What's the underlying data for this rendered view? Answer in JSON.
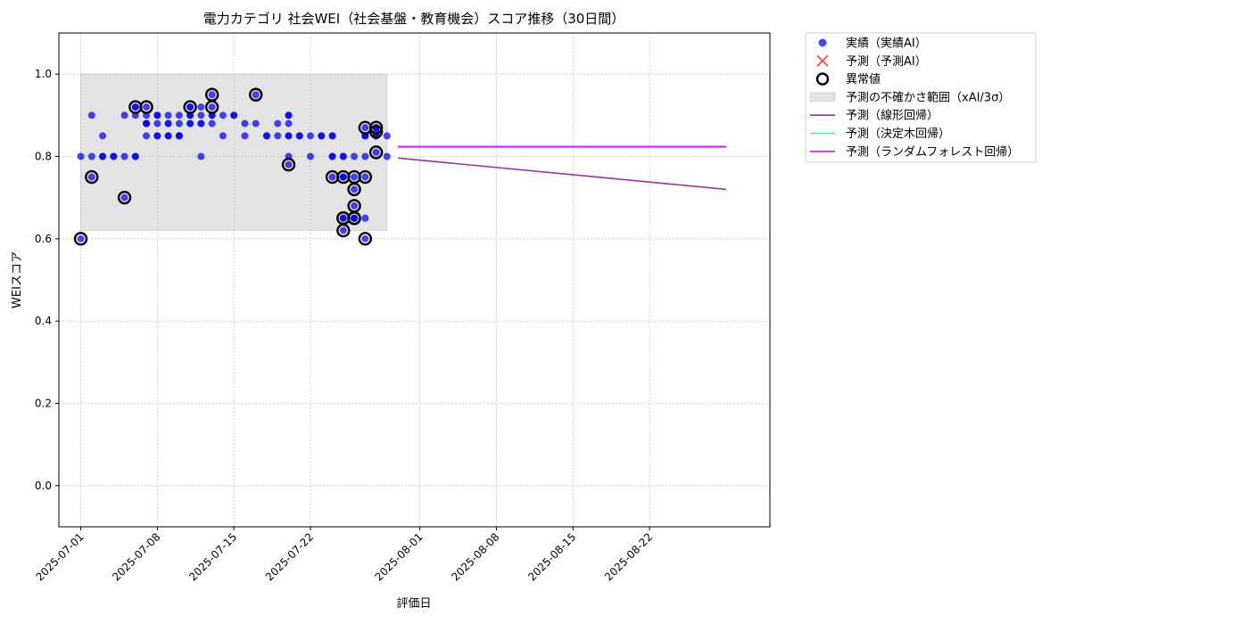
{
  "chart_data": {
    "type": "scatter",
    "title": "電力カテゴリ 社会WEI（社会基盤・教育機会）スコア推移（30日間）",
    "xlabel": "評価日",
    "ylabel": "WEIスコア",
    "xlim": [
      "2025-06-29",
      "2025-09-02"
    ],
    "ylim": [
      -0.1,
      1.1
    ],
    "yticks": [
      0.0,
      0.2,
      0.4,
      0.6,
      0.8,
      1.0
    ],
    "ytick_labels": [
      "0.0",
      "0.2",
      "0.4",
      "0.6",
      "0.8",
      "1.0"
    ],
    "xticks": [
      "2025-07-01",
      "2025-07-08",
      "2025-07-15",
      "2025-07-22",
      "2025-08-01",
      "2025-08-08",
      "2025-08-15",
      "2025-08-22"
    ],
    "grid": true,
    "legend_position": "outside-top-right",
    "uncertainty_band": {
      "name": "予測の不確かさ範囲（xAI/3σ）",
      "x": [
        "2025-07-01",
        "2025-07-29"
      ],
      "y": [
        0.62,
        1.0
      ],
      "color": "#b0b0b0"
    },
    "series": [
      {
        "name": "実績（実績AI）",
        "type": "scatter",
        "color": "#0000ee",
        "points": [
          [
            "2025-07-01",
            0.8
          ],
          [
            "2025-07-01",
            0.6
          ],
          [
            "2025-07-02",
            0.9
          ],
          [
            "2025-07-02",
            0.75
          ],
          [
            "2025-07-02",
            0.8
          ],
          [
            "2025-07-03",
            0.8
          ],
          [
            "2025-07-03",
            0.85
          ],
          [
            "2025-07-03",
            0.8
          ],
          [
            "2025-07-04",
            0.8
          ],
          [
            "2025-07-04",
            0.8
          ],
          [
            "2025-07-05",
            0.7
          ],
          [
            "2025-07-05",
            0.9
          ],
          [
            "2025-07-05",
            0.8
          ],
          [
            "2025-07-06",
            0.9
          ],
          [
            "2025-07-06",
            0.92
          ],
          [
            "2025-07-06",
            0.8
          ],
          [
            "2025-07-06",
            0.8
          ],
          [
            "2025-07-06",
            0.92
          ],
          [
            "2025-07-07",
            0.88
          ],
          [
            "2025-07-07",
            0.85
          ],
          [
            "2025-07-07",
            0.9
          ],
          [
            "2025-07-07",
            0.88
          ],
          [
            "2025-07-07",
            0.92
          ],
          [
            "2025-07-07",
            0.88
          ],
          [
            "2025-07-08",
            0.85
          ],
          [
            "2025-07-08",
            0.88
          ],
          [
            "2025-07-08",
            0.9
          ],
          [
            "2025-07-08",
            0.85
          ],
          [
            "2025-07-08",
            0.9
          ],
          [
            "2025-07-09",
            0.9
          ],
          [
            "2025-07-09",
            0.88
          ],
          [
            "2025-07-09",
            0.85
          ],
          [
            "2025-07-09",
            0.85
          ],
          [
            "2025-07-09",
            0.88
          ],
          [
            "2025-07-10",
            0.85
          ],
          [
            "2025-07-10",
            0.9
          ],
          [
            "2025-07-10",
            0.85
          ],
          [
            "2025-07-10",
            0.85
          ],
          [
            "2025-07-10",
            0.88
          ],
          [
            "2025-07-11",
            0.88
          ],
          [
            "2025-07-11",
            0.9
          ],
          [
            "2025-07-11",
            0.9
          ],
          [
            "2025-07-11",
            0.88
          ],
          [
            "2025-07-11",
            0.92
          ],
          [
            "2025-07-11",
            0.92
          ],
          [
            "2025-07-12",
            0.88
          ],
          [
            "2025-07-12",
            0.8
          ],
          [
            "2025-07-12",
            0.9
          ],
          [
            "2025-07-12",
            0.88
          ],
          [
            "2025-07-12",
            0.92
          ],
          [
            "2025-07-13",
            0.9
          ],
          [
            "2025-07-13",
            0.95
          ],
          [
            "2025-07-13",
            0.92
          ],
          [
            "2025-07-13",
            0.88
          ],
          [
            "2025-07-13",
            0.9
          ],
          [
            "2025-07-14",
            0.9
          ],
          [
            "2025-07-14",
            0.85
          ],
          [
            "2025-07-15",
            0.9
          ],
          [
            "2025-07-15",
            0.9
          ],
          [
            "2025-07-16",
            0.88
          ],
          [
            "2025-07-16",
            0.85
          ],
          [
            "2025-07-17",
            0.95
          ],
          [
            "2025-07-17",
            0.88
          ],
          [
            "2025-07-18",
            0.85
          ],
          [
            "2025-07-18",
            0.85
          ],
          [
            "2025-07-19",
            0.88
          ],
          [
            "2025-07-19",
            0.85
          ],
          [
            "2025-07-20",
            0.9
          ],
          [
            "2025-07-20",
            0.9
          ],
          [
            "2025-07-20",
            0.88
          ],
          [
            "2025-07-20",
            0.78
          ],
          [
            "2025-07-20",
            0.85
          ],
          [
            "2025-07-20",
            0.85
          ],
          [
            "2025-07-20",
            0.8
          ],
          [
            "2025-07-21",
            0.85
          ],
          [
            "2025-07-21",
            0.85
          ],
          [
            "2025-07-22",
            0.8
          ],
          [
            "2025-07-22",
            0.85
          ],
          [
            "2025-07-23",
            0.85
          ],
          [
            "2025-07-23",
            0.85
          ],
          [
            "2025-07-24",
            0.85
          ],
          [
            "2025-07-24",
            0.8
          ],
          [
            "2025-07-24",
            0.8
          ],
          [
            "2025-07-24",
            0.75
          ],
          [
            "2025-07-24",
            0.85
          ],
          [
            "2025-07-25",
            0.75
          ],
          [
            "2025-07-25",
            0.75
          ],
          [
            "2025-07-25",
            0.65
          ],
          [
            "2025-07-25",
            0.65
          ],
          [
            "2025-07-25",
            0.75
          ],
          [
            "2025-07-25",
            0.8
          ],
          [
            "2025-07-25",
            0.62
          ],
          [
            "2025-07-25",
            0.8
          ],
          [
            "2025-07-26",
            0.65
          ],
          [
            "2025-07-26",
            0.75
          ],
          [
            "2025-07-26",
            0.8
          ],
          [
            "2025-07-26",
            0.65
          ],
          [
            "2025-07-26",
            0.65
          ],
          [
            "2025-07-26",
            0.68
          ],
          [
            "2025-07-26",
            0.72
          ],
          [
            "2025-07-27",
            0.65
          ],
          [
            "2025-07-27",
            0.6
          ],
          [
            "2025-07-27",
            0.85
          ],
          [
            "2025-07-27",
            0.87
          ],
          [
            "2025-07-27",
            0.85
          ],
          [
            "2025-07-27",
            0.85
          ],
          [
            "2025-07-27",
            0.8
          ],
          [
            "2025-07-27",
            0.75
          ],
          [
            "2025-07-28",
            0.87
          ],
          [
            "2025-07-28",
            0.85
          ],
          [
            "2025-07-28",
            0.87
          ],
          [
            "2025-07-28",
            0.86
          ],
          [
            "2025-07-28",
            0.85
          ],
          [
            "2025-07-28",
            0.81
          ],
          [
            "2025-07-29",
            0.85
          ],
          [
            "2025-07-29",
            0.8
          ]
        ]
      },
      {
        "name": "予測（予測AI）",
        "type": "scatter",
        "color": "#ff4444",
        "points": []
      },
      {
        "name": "異常値",
        "type": "scatter",
        "color": "#000000",
        "points": [
          [
            "2025-07-01",
            0.6
          ],
          [
            "2025-07-02",
            0.75
          ],
          [
            "2025-07-05",
            0.7
          ],
          [
            "2025-07-06",
            0.92
          ],
          [
            "2025-07-07",
            0.92
          ],
          [
            "2025-07-11",
            0.92
          ],
          [
            "2025-07-13",
            0.95
          ],
          [
            "2025-07-13",
            0.92
          ],
          [
            "2025-07-17",
            0.95
          ],
          [
            "2025-07-20",
            0.78
          ],
          [
            "2025-07-24",
            0.75
          ],
          [
            "2025-07-25",
            0.75
          ],
          [
            "2025-07-25",
            0.65
          ],
          [
            "2025-07-25",
            0.62
          ],
          [
            "2025-07-25",
            0.65
          ],
          [
            "2025-07-26",
            0.75
          ],
          [
            "2025-07-26",
            0.65
          ],
          [
            "2025-07-26",
            0.65
          ],
          [
            "2025-07-26",
            0.68
          ],
          [
            "2025-07-26",
            0.72
          ],
          [
            "2025-07-27",
            0.6
          ],
          [
            "2025-07-27",
            0.87
          ],
          [
            "2025-07-27",
            0.75
          ],
          [
            "2025-07-28",
            0.87
          ],
          [
            "2025-07-28",
            0.86
          ],
          [
            "2025-07-28",
            0.81
          ]
        ]
      },
      {
        "name": "予測（線形回帰）",
        "type": "line",
        "color": "#993399",
        "points": [
          [
            "2025-07-30",
            0.796
          ],
          [
            "2025-08-29",
            0.72
          ]
        ]
      },
      {
        "name": "予測（決定木回帰）",
        "type": "line",
        "color": "#00ffff",
        "points": [
          [
            "2025-07-30",
            0.825
          ],
          [
            "2025-08-29",
            0.825
          ]
        ]
      },
      {
        "name": "予測（ランダムフォレスト回帰）",
        "type": "line",
        "color": "#ff00ff",
        "points": [
          [
            "2025-07-30",
            0.823
          ],
          [
            "2025-08-29",
            0.823
          ]
        ]
      }
    ]
  }
}
